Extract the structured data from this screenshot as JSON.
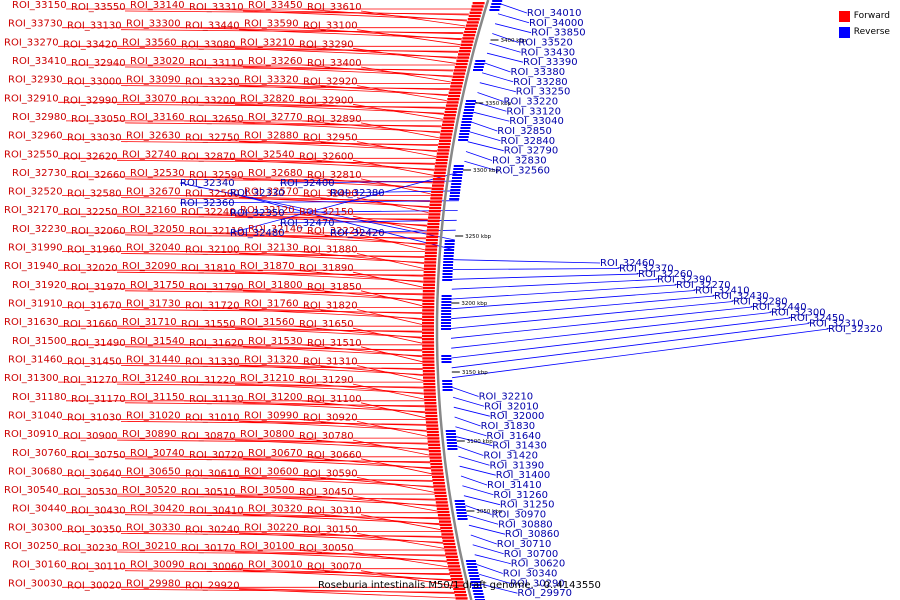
{
  "legend": {
    "forward_label": "Forward",
    "reverse_label": "Reverse",
    "forward_color": "#ff0000",
    "reverse_color": "#0000ff"
  },
  "caption": "Roseburia intestinalis M50/1 draft genome. - 0..4143550",
  "ticks": [
    "3400 kbp",
    "3350 kbp",
    "3300 kbp",
    "3250 kbp",
    "3200 kbp",
    "3150 kbp",
    "3100 kbp",
    "3050 kbp"
  ],
  "forward_labels": [
    "ROI_33150",
    "ROI_33550",
    "ROI_33140",
    "ROI_33310",
    "ROI_33450",
    "ROI_33610",
    "ROI_33730",
    "ROI_33130",
    "ROI_33300",
    "ROI_33440",
    "ROI_33590",
    "ROI_33100",
    "ROI_33270",
    "ROI_33420",
    "ROI_33560",
    "ROI_33080",
    "ROI_33210",
    "ROI_33290",
    "ROI_33410",
    "ROI_32940",
    "ROI_33020",
    "ROI_33110",
    "ROI_33260",
    "ROI_33400",
    "ROI_32930",
    "ROI_33000",
    "ROI_33090",
    "ROI_33230",
    "ROI_33320",
    "ROI_32920",
    "ROI_32910",
    "ROI_32990",
    "ROI_33070",
    "ROI_33200",
    "ROI_32820",
    "ROI_32900",
    "ROI_32980",
    "ROI_33050",
    "ROI_33160",
    "ROI_32650",
    "ROI_32770",
    "ROI_32890",
    "ROI_32960",
    "ROI_33030",
    "ROI_32630",
    "ROI_32750",
    "ROI_32880",
    "ROI_32950",
    "ROI_32550",
    "ROI_32620",
    "ROI_32740",
    "ROI_32870",
    "ROI_32540",
    "ROI_32600",
    "ROI_32730",
    "ROI_32660",
    "ROI_32530",
    "ROI_32590",
    "ROI_32680",
    "ROI_32810",
    "ROI_32520",
    "ROI_32580",
    "ROI_32670",
    "ROI_32500",
    "ROI_32570",
    "ROI_32490",
    "ROI_32170",
    "ROI_32250",
    "ROI_32160",
    "ROI_32240",
    "ROI_32120",
    "ROI_32150",
    "ROI_32230",
    "ROI_32060",
    "ROI_32050",
    "ROI_32110",
    "ROI_32140",
    "ROI_32220",
    "ROI_31990",
    "ROI_31960",
    "ROI_32040",
    "ROI_32100",
    "ROI_32130",
    "ROI_31880",
    "ROI_31940",
    "ROI_32020",
    "ROI_32090",
    "ROI_31810",
    "ROI_31870",
    "ROI_31890",
    "ROI_31920",
    "ROI_31970",
    "ROI_31750",
    "ROI_31790",
    "ROI_31800",
    "ROI_31850",
    "ROI_31910",
    "ROI_31670",
    "ROI_31730",
    "ROI_31720",
    "ROI_31760",
    "ROI_31820",
    "ROI_31630",
    "ROI_31660",
    "ROI_31710",
    "ROI_31550",
    "ROI_31560",
    "ROI_31650",
    "ROI_31500",
    "ROI_31490",
    "ROI_31540",
    "ROI_31620",
    "ROI_31530",
    "ROI_31510",
    "ROI_31460",
    "ROI_31450",
    "ROI_31440",
    "ROI_31330",
    "ROI_31320",
    "ROI_31310",
    "ROI_31300",
    "ROI_31270",
    "ROI_31240",
    "ROI_31220",
    "ROI_31210",
    "ROI_31290",
    "ROI_31180",
    "ROI_31170",
    "ROI_31150",
    "ROI_31130",
    "ROI_31200",
    "ROI_31100",
    "ROI_31040",
    "ROI_31030",
    "ROI_31020",
    "ROI_31010",
    "ROI_30990",
    "ROI_30920",
    "ROI_30910",
    "ROI_30900",
    "ROI_30890",
    "ROI_30870",
    "ROI_30800",
    "ROI_30780",
    "ROI_30760",
    "ROI_30750",
    "ROI_30740",
    "ROI_30720",
    "ROI_30670",
    "ROI_30660",
    "ROI_30680",
    "ROI_30640",
    "ROI_30650",
    "ROI_30610",
    "ROI_30600",
    "ROI_30590",
    "ROI_30540",
    "ROI_30530",
    "ROI_30520",
    "ROI_30510",
    "ROI_30500",
    "ROI_30450",
    "ROI_30440",
    "ROI_30430",
    "ROI_30420",
    "ROI_30410",
    "ROI_30320",
    "ROI_30310",
    "ROI_30300",
    "ROI_30350",
    "ROI_30330",
    "ROI_30240",
    "ROI_30220",
    "ROI_30150",
    "ROI_30250",
    "ROI_30230",
    "ROI_30210",
    "ROI_30170",
    "ROI_30100",
    "ROI_30050",
    "ROI_30160",
    "ROI_30110",
    "ROI_30090",
    "ROI_30060",
    "ROI_30010",
    "ROI_30070",
    "ROI_30030",
    "ROI_30020",
    "ROI_29980",
    "ROI_29920"
  ],
  "reverse_labels": [
    "ROI_34010",
    "ROI_34000",
    "ROI_33850",
    "ROI_33520",
    "ROI_33430",
    "ROI_33390",
    "ROI_33380",
    "ROI_33280",
    "ROI_33250",
    "ROI_33220",
    "ROI_33120",
    "ROI_33040",
    "ROI_32850",
    "ROI_32840",
    "ROI_32790",
    "ROI_32830",
    "ROI_32560",
    "ROI_32480",
    "ROI_32400",
    "ROI_32380",
    "ROI_32360",
    "ROI_32350",
    "ROI_32470",
    "ROI_32420",
    "ROI_32340",
    "ROI_32330",
    "ROI_32460",
    "ROI_32370",
    "ROI_32260",
    "ROI_32390",
    "ROI_32270",
    "ROI_32410",
    "ROI_32430",
    "ROI_32280",
    "ROI_32440",
    "ROI_32300",
    "ROI_32450",
    "ROI_32310",
    "ROI_32320",
    "ROI_32210",
    "ROI_32010",
    "ROI_32000",
    "ROI_31830",
    "ROI_31640",
    "ROI_31430",
    "ROI_31420",
    "ROI_31390",
    "ROI_31400",
    "ROI_31410",
    "ROI_31260",
    "ROI_31250",
    "ROI_30970",
    "ROI_30880",
    "ROI_30860",
    "ROI_30710",
    "ROI_30700",
    "ROI_30620",
    "ROI_30340",
    "ROI_30290",
    "ROI_29970"
  ]
}
